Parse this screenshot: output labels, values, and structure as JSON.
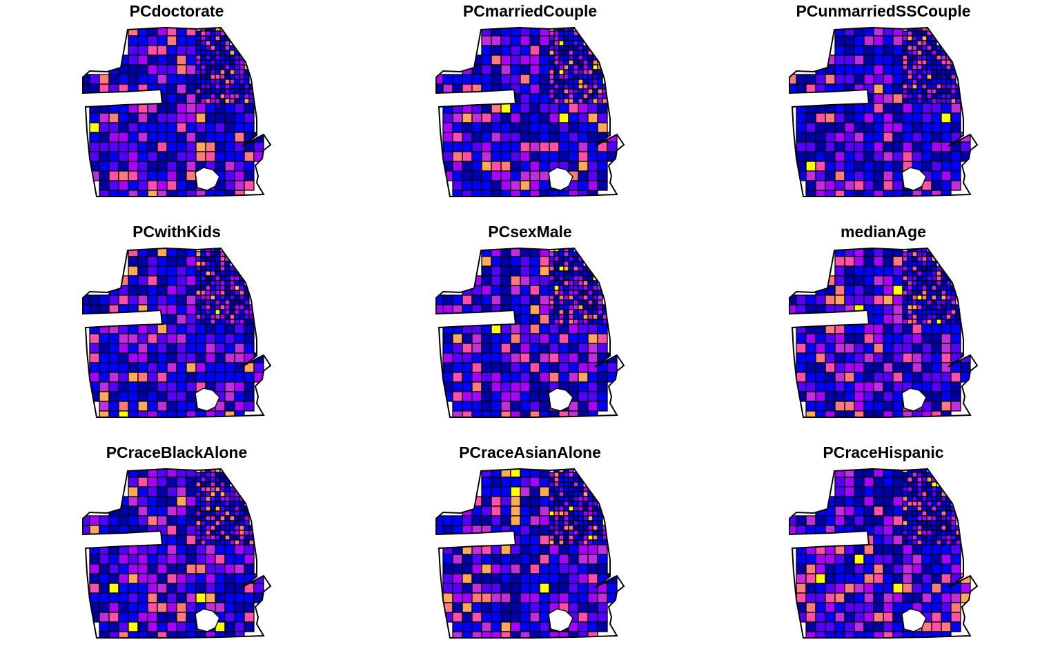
{
  "figure": {
    "panels": [
      {
        "title": "PCdoctorate",
        "palette": [
          "#0000AA",
          "#0000FF",
          "#5500FF",
          "#AA00FF",
          "#C22DDD",
          "#FF4FA6",
          "#FF7B7B",
          "#FFA85A",
          "#FFFF00"
        ]
      },
      {
        "title": "PCmarriedCouple",
        "palette": [
          "#0000AA",
          "#0000FF",
          "#5500FF",
          "#AA00FF",
          "#C22DDD",
          "#FF4FA6",
          "#FF7B7B",
          "#FFA85A",
          "#FFFF00"
        ]
      },
      {
        "title": "PCunmarriedSSCouple",
        "palette": [
          "#0000AA",
          "#0000FF",
          "#5500FF",
          "#AA00FF",
          "#C22DDD",
          "#FF4FA6",
          "#FF7B7B",
          "#FFA85A",
          "#FFFF00"
        ]
      },
      {
        "title": "PCwithKids",
        "palette": [
          "#0000AA",
          "#0000FF",
          "#5500FF",
          "#AA00FF",
          "#C22DDD",
          "#FF4FA6",
          "#FF7B7B",
          "#FFA85A",
          "#FFFF00"
        ]
      },
      {
        "title": "PCsexMale",
        "palette": [
          "#0000AA",
          "#0000FF",
          "#5500FF",
          "#AA00FF",
          "#C22DDD",
          "#FF4FA6",
          "#FF7B7B",
          "#FFA85A",
          "#FFFF00"
        ]
      },
      {
        "title": "medianAge",
        "palette": [
          "#0000AA",
          "#0000FF",
          "#5500FF",
          "#AA00FF",
          "#C22DDD",
          "#FF4FA6",
          "#FF7B7B",
          "#FFA85A",
          "#FFFF00"
        ]
      },
      {
        "title": "PCraceBlackAlone",
        "palette": [
          "#0000AA",
          "#0000FF",
          "#5500FF",
          "#AA00FF",
          "#C22DDD",
          "#FF4FA6",
          "#FF7B7B",
          "#FFA85A",
          "#FFFF00"
        ]
      },
      {
        "title": "PCraceAsianAlone",
        "palette": [
          "#0000AA",
          "#0000FF",
          "#5500FF",
          "#AA00FF",
          "#C22DDD",
          "#FF4FA6",
          "#FF7B7B",
          "#FFA85A",
          "#FFFF00"
        ]
      },
      {
        "title": "PCraceHispanic",
        "palette": [
          "#0000AA",
          "#0000FF",
          "#5500FF",
          "#AA00FF",
          "#C22DDD",
          "#FF4FA6",
          "#FF7B7B",
          "#FFA85A",
          "#FFFF00"
        ]
      }
    ],
    "outline_color": "#000000",
    "background_color": "#FFFFFF"
  }
}
